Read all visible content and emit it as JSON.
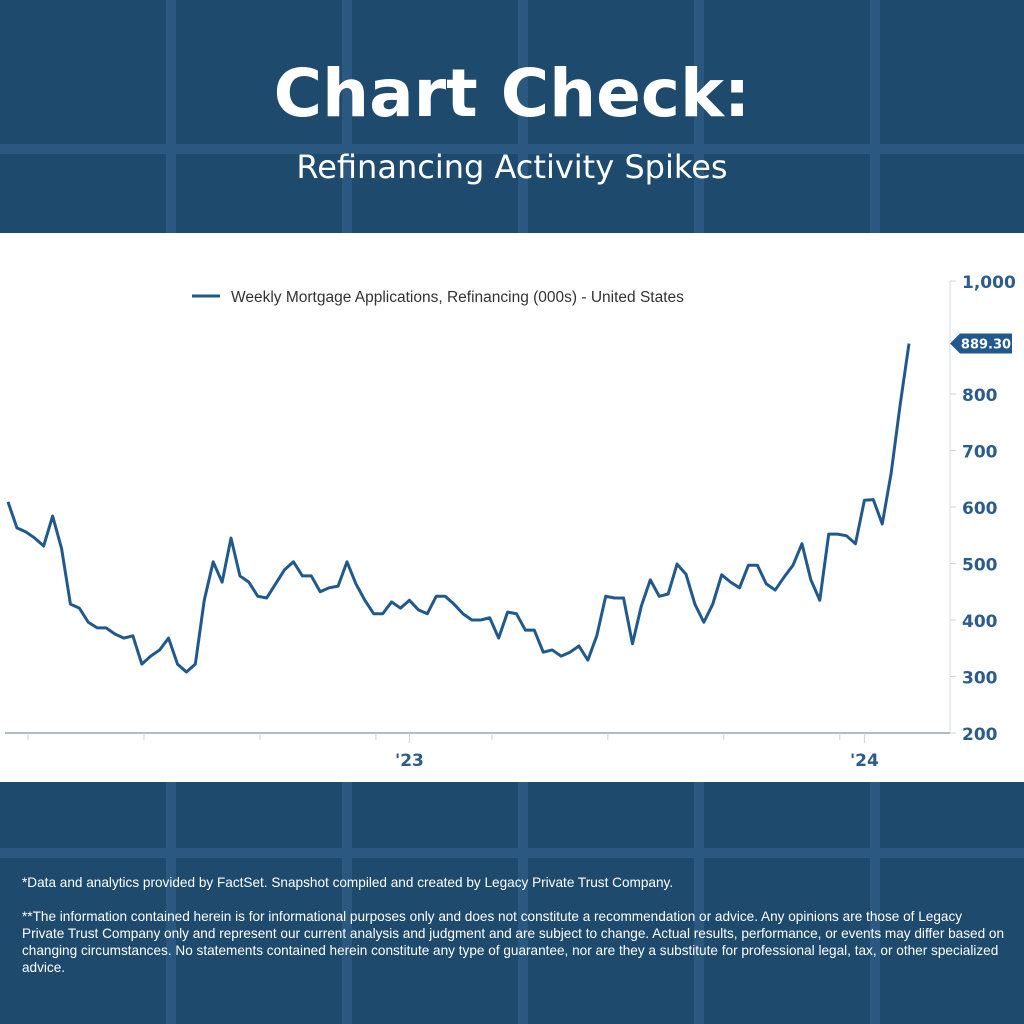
{
  "header": {
    "title": "Chart Check:",
    "subtitle": "Refinancing Activity Spikes"
  },
  "chart_data": {
    "type": "line",
    "legend_placement": "top",
    "series": [
      {
        "name": "Weekly Mortgage Applications, Refinancing (000s) - United States",
        "color": "#21598c",
        "values": [
          609,
          563,
          556,
          545,
          531,
          584,
          527,
          428,
          421,
          396,
          386,
          386,
          375,
          368,
          372,
          322,
          336,
          347,
          368,
          322,
          308,
          322,
          435,
          503,
          467,
          545,
          478,
          467,
          442,
          439,
          464,
          489,
          503,
          478,
          478,
          450,
          457,
          460,
          503,
          464,
          435,
          411,
          411,
          432,
          421,
          435,
          418,
          411,
          442,
          442,
          428,
          411,
          400,
          400,
          404,
          368,
          414,
          411,
          382,
          382,
          343,
          347,
          336,
          343,
          354,
          329,
          372,
          442,
          439,
          439,
          358,
          425,
          471,
          442,
          446,
          499,
          481,
          428,
          396,
          428,
          480,
          467,
          457,
          497,
          497,
          464,
          453,
          476,
          497,
          535,
          471,
          435,
          552,
          552,
          549,
          535,
          612,
          613,
          570,
          660,
          780,
          889.3
        ]
      }
    ],
    "x_tick_labels": [
      {
        "label": "'23",
        "index": 45
      },
      {
        "label": "'24",
        "index": 96
      }
    ],
    "y_axis": {
      "position": "right",
      "ylim": [
        200,
        1000
      ],
      "ticks": [
        200,
        300,
        400,
        500,
        600,
        700,
        800,
        1000
      ],
      "tick_labels": [
        "200",
        "300",
        "400",
        "500",
        "600",
        "700",
        "800",
        "1,000"
      ]
    },
    "last_value_label": "889.30",
    "grid": false
  },
  "footer": {
    "source_note": "*Data and analytics provided by FactSet. Snapshot compiled and created by Legacy Private Trust Company.",
    "disclaimer": "**The information contained herein is for informational purposes only and does not constitute a recommendation or advice. Any opinions are those of Legacy Private Trust Company only and represent our current analysis and judgment and are subject to change. Actual results, performance, or events may differ based on changing circumstances. No statements contained herein constitute any type of guarantee, nor are they a substitute for professional legal, tax, or other specialized advice."
  }
}
